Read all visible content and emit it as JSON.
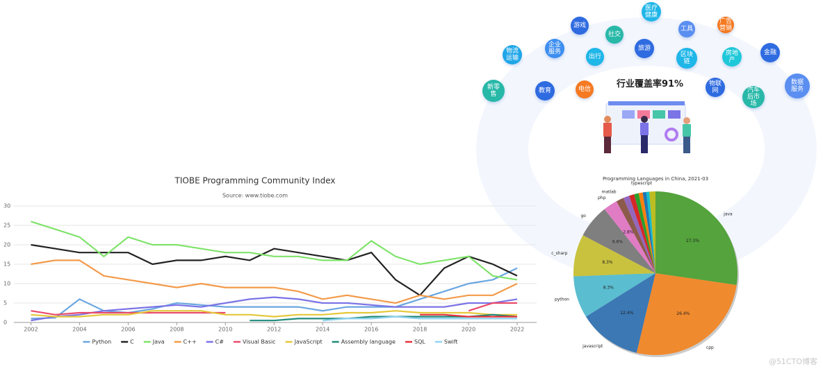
{
  "illustration": {
    "headline": "行业覆盖率91%",
    "tags": [
      "医疗健康",
      "游戏",
      "工具",
      "广告营销",
      "社交",
      "物流运输",
      "企业服务",
      "出行",
      "旅游",
      "区块链",
      "房地产",
      "金融",
      "数据服务",
      "新零售",
      "教育",
      "电信",
      "物联网",
      "汽车后市场"
    ]
  },
  "watermark": "@51CTO博客",
  "chart_data": [
    {
      "type": "line",
      "title": "TIOBE Programming Community Index",
      "subtitle": "Source: www.tiobe.com",
      "x": [
        2002,
        2003,
        2004,
        2005,
        2006,
        2007,
        2008,
        2009,
        2010,
        2011,
        2012,
        2013,
        2014,
        2015,
        2016,
        2017,
        2018,
        2019,
        2020,
        2021,
        2022
      ],
      "xlim": [
        2001.3,
        2022.8
      ],
      "xticks": [
        2002,
        2004,
        2006,
        2008,
        2010,
        2012,
        2014,
        2016,
        2018,
        2020,
        2022
      ],
      "ylim": [
        0,
        30
      ],
      "yticks": [
        0,
        5,
        10,
        15,
        20,
        25,
        30
      ],
      "grid": true,
      "legend": "bottom",
      "series": [
        {
          "name": "Python",
          "color": "#6aa6e0",
          "values": [
            1,
            1.2,
            6,
            3,
            2.5,
            3.5,
            5,
            4.5,
            4,
            4,
            4,
            4,
            3,
            4,
            4,
            4,
            6,
            8,
            10,
            11,
            14
          ]
        },
        {
          "name": "C",
          "color": "#222222",
          "values": [
            20,
            19,
            18,
            18,
            18,
            15,
            16,
            16,
            17,
            16,
            19,
            18,
            17,
            16,
            18,
            11,
            7,
            14,
            17,
            15,
            12
          ]
        },
        {
          "name": "Java",
          "color": "#7fe36a",
          "values": [
            26,
            24,
            22,
            17,
            22,
            20,
            20,
            19,
            18,
            18,
            17,
            17,
            16,
            16,
            21,
            17,
            15,
            16,
            17,
            12,
            11
          ]
        },
        {
          "name": "C++",
          "color": "#f39a4a",
          "values": [
            15,
            16,
            16,
            12,
            11,
            10,
            9,
            10,
            9,
            9,
            9,
            8,
            6,
            7,
            6,
            5,
            7,
            6,
            7,
            7,
            10
          ]
        },
        {
          "name": "C#",
          "color": "#7b73e6",
          "values": [
            0.5,
            1.5,
            2,
            3,
            3.5,
            4,
            4.5,
            4,
            5,
            6,
            6.5,
            6,
            5,
            5,
            4.5,
            4,
            4,
            4,
            5,
            5,
            6
          ]
        },
        {
          "name": "Visual Basic",
          "color": "#ea4b6b",
          "values": [
            3,
            2,
            2.5,
            2.5,
            2.5,
            2.5,
            2.5,
            2.5,
            2.5,
            null,
            null,
            null,
            null,
            null,
            null,
            null,
            null,
            null,
            3,
            5,
            5
          ]
        },
        {
          "name": "JavaScript",
          "color": "#e4c83a",
          "values": [
            2,
            1.5,
            1.5,
            2,
            2,
            3,
            3,
            3,
            2,
            2,
            1.5,
            2,
            2,
            2.5,
            2.5,
            3,
            2.5,
            2.5,
            2.5,
            2,
            2
          ]
        },
        {
          "name": "Assembly language",
          "color": "#1f8a7a",
          "values": [
            null,
            null,
            null,
            null,
            null,
            null,
            null,
            null,
            null,
            0.5,
            0.5,
            1,
            1,
            1,
            1.5,
            1.5,
            1.5,
            1.5,
            1.5,
            2,
            1.5
          ]
        },
        {
          "name": "SQL",
          "color": "#e8323c",
          "values": [
            null,
            null,
            null,
            null,
            null,
            null,
            null,
            null,
            null,
            null,
            null,
            null,
            null,
            null,
            null,
            null,
            2,
            2,
            1.5,
            1.5,
            1.5
          ]
        },
        {
          "name": "Swift",
          "color": "#8fd3f0",
          "values": [
            null,
            null,
            null,
            null,
            null,
            null,
            null,
            null,
            null,
            null,
            null,
            null,
            0.5,
            1,
            1,
            1.5,
            1,
            1,
            1,
            1,
            1
          ]
        }
      ]
    },
    {
      "type": "pie",
      "title": "Programming Languages in China, 2021-03",
      "categories": [
        "java",
        "cpp",
        "javascript",
        "python",
        "c_sharp",
        "go",
        "php",
        "matlab",
        null,
        null,
        null,
        null,
        null,
        null,
        "typescript"
      ],
      "values": [
        27.3,
        26.4,
        12.4,
        8.3,
        8.3,
        6.6,
        2.8,
        1.5,
        1.2,
        1.0,
        0.9,
        0.8,
        0.7,
        0.6,
        1.2
      ],
      "value_labels": [
        "27.3%",
        "26.4%",
        "12.4%",
        "8.3%",
        "8.3%",
        "6.6%",
        "2.8%",
        null,
        null,
        null,
        null,
        null,
        null,
        null,
        null
      ],
      "colors": [
        "#54a33c",
        "#f08a2e",
        "#3b78b4",
        "#5bbdd0",
        "#c9c23e",
        "#7f7f7f",
        "#e07cc4",
        "#8c5a4a",
        "#9467bd",
        "#d62728",
        "#2ca02c",
        "#ff7f0e",
        "#1f77b4",
        "#17becf",
        "#bcbd22"
      ]
    }
  ]
}
